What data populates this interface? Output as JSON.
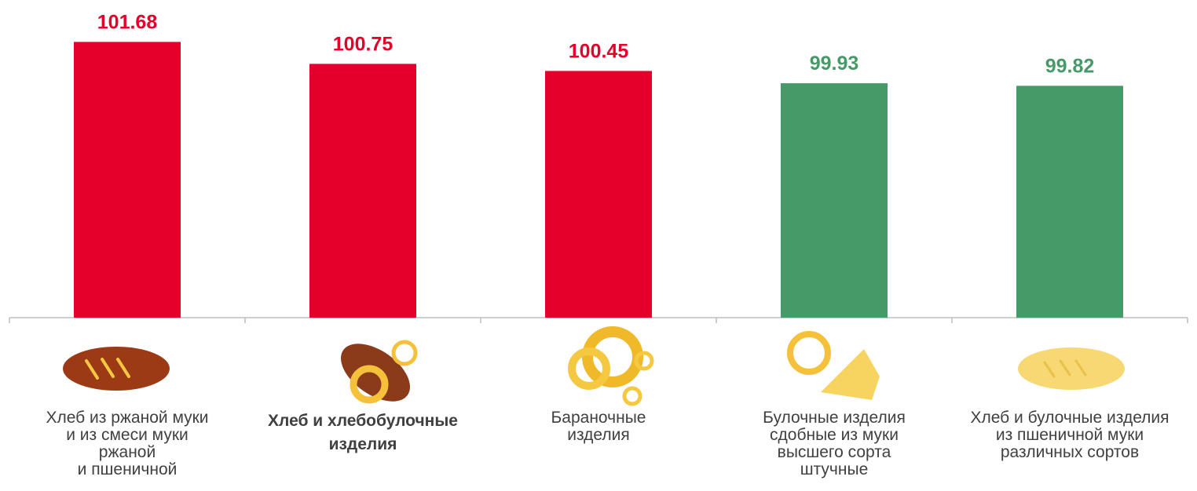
{
  "chart_data": {
    "type": "bar",
    "categories": [
      "Хлеб из ржаной муки\nи из смеси муки\nржаной\nи пшеничной",
      "Хлеб и хлебобулочные\nизделия",
      "Бараночные\nизделия",
      "Булочные изделия\nсдобные из муки\nвысшего сорта\nштучные",
      "Хлеб и булочные изделия\nиз пшеничной муки\nразличных сортов"
    ],
    "values": [
      101.68,
      100.75,
      100.45,
      99.93,
      99.82
    ],
    "colors": [
      "#e4002b",
      "#e4002b",
      "#e4002b",
      "#459a68",
      "#459a68"
    ],
    "highlight": 1,
    "ylim": [
      90,
      102
    ]
  }
}
